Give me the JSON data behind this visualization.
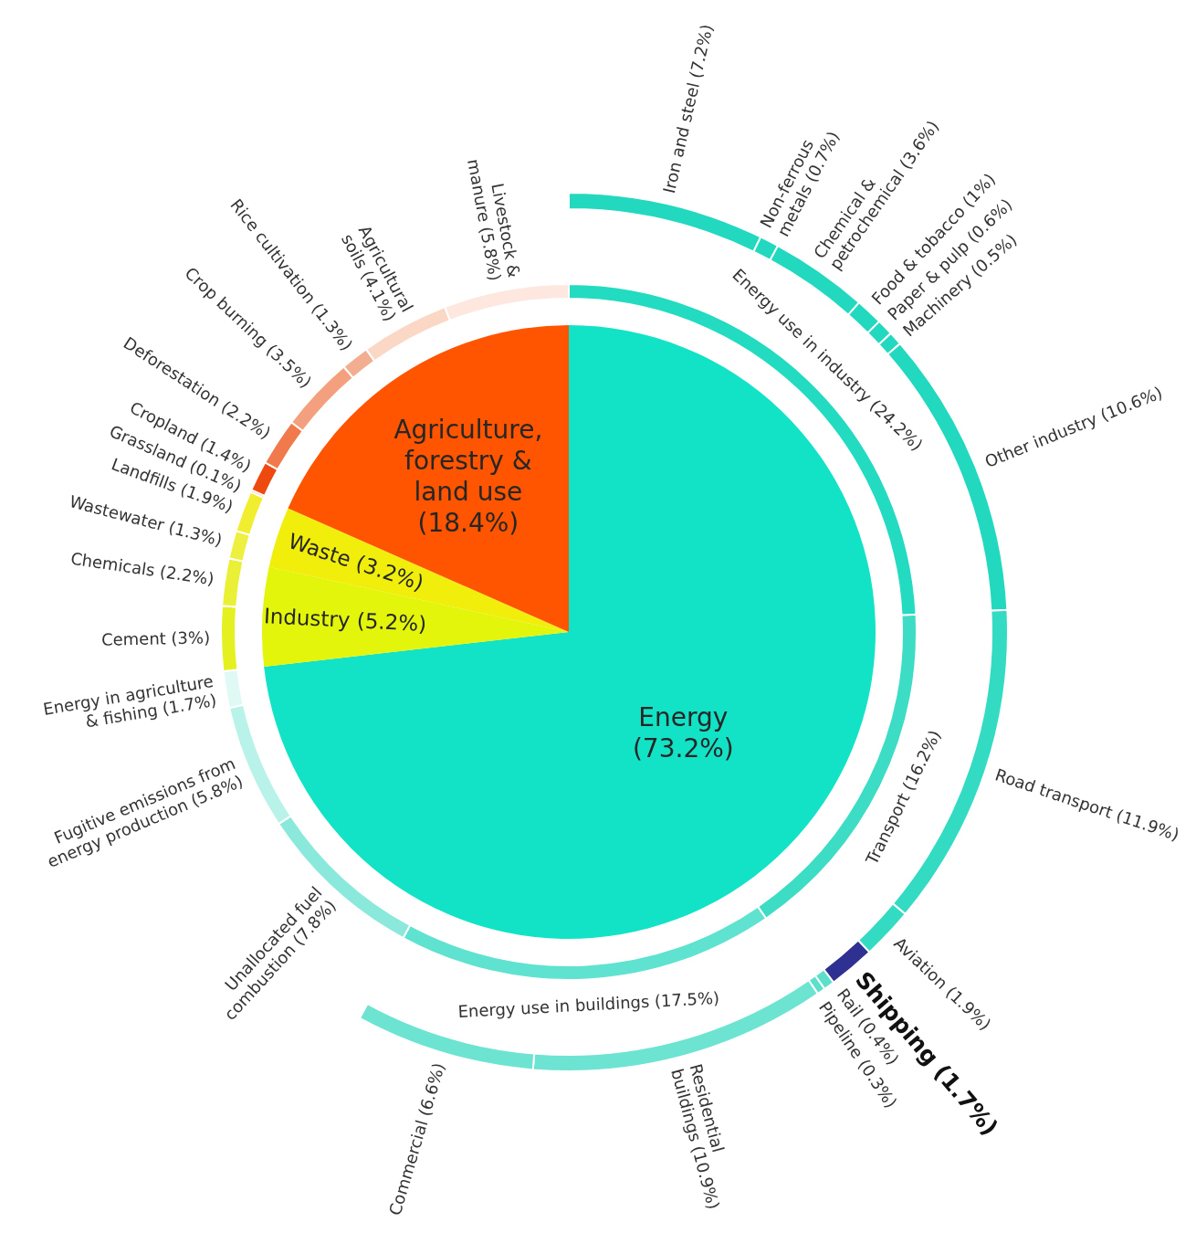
{
  "chart_data": [
    {
      "type": "pie",
      "categories": [
        "Energy",
        "Industry",
        "Waste",
        "Agriculture, forestry & land use"
      ],
      "values": [
        73.2,
        5.2,
        3.2,
        18.4
      ],
      "value_labels": [
        "(73.2%)",
        "(5.2%)",
        "(3.2%)",
        "(18.4%)"
      ],
      "colors": [
        "#12e2c6",
        "#e2f50a",
        "#f0ee0a",
        "#ff5500"
      ]
    },
    {
      "type": "donut",
      "categories": [
        "Energy use in industry",
        "Transport",
        "Energy use in buildings",
        "Unallocated fuel combustion",
        "Fugitive emissions from energy production",
        "Energy in agriculture & fishing",
        "Cement",
        "Chemicals",
        "Wastewater",
        "Landfills",
        "Grassland",
        "Cropland",
        "Deforestation",
        "Crop burning",
        "Rice cultivation",
        "Agricultural soils",
        "Livestock & manure"
      ],
      "values": [
        24.2,
        16.2,
        17.5,
        7.8,
        5.8,
        1.7,
        3,
        2.2,
        1.3,
        1.9,
        0.1,
        1.4,
        2.2,
        3.5,
        1.3,
        4.1,
        5.8
      ],
      "value_labels": [
        "(24.2%)",
        "(16.2%)",
        "(17.5%)",
        "(7.8%)",
        "(5.8%)",
        "(1.7%)",
        "(3%)",
        "(2.2%)",
        "(1.3%)",
        "(1.9%)",
        "(0.1%)",
        "(1.4%)",
        "(2.2%)",
        "(3.5%)",
        "(1.3%)",
        "(4.1%)",
        "(5.8%)"
      ],
      "colors": [
        "#22dbc0",
        "#3ddcc5",
        "#5fe2cf",
        "#8ae9da",
        "#b8f2e9",
        "#e0f9f5",
        "#e4f020",
        "#e9f035",
        "#eef040",
        "#f1ee30",
        "#ff4500",
        "#ee4a10",
        "#f07a4c",
        "#f4a07e",
        "#f3ad90",
        "#fbd7c6",
        "#fde7de"
      ]
    },
    {
      "type": "donut",
      "categories": [
        "Iron and steel",
        "Non-ferrous metals",
        "Chemical & petrochemical",
        "Food & tobacco",
        "Paper & pulp",
        "Machinery",
        "Other industry",
        "Road transport",
        "Aviation",
        "Shipping",
        "Rail",
        "Pipeline",
        "Residential buildings",
        "Commercial"
      ],
      "values": [
        7.2,
        0.7,
        3.6,
        1,
        0.6,
        0.5,
        10.6,
        11.9,
        1.9,
        1.7,
        0.4,
        0.3,
        10.9,
        6.6
      ],
      "value_labels": [
        "(7.2%)",
        "(0.7%)",
        "(3.6%)",
        "(1%)",
        "(0.6%)",
        "(0.5%)",
        "(10.6%)",
        "(11.9%)",
        "(1.9%)",
        "(1.7%)",
        "(0.4%)",
        "(0.3%)",
        "(10.9%)",
        "(6.6%)"
      ],
      "colors": [
        "#22d8be",
        "#22d8be",
        "#22d8be",
        "#22d8be",
        "#22d8be",
        "#22d8be",
        "#22d8be",
        "#34dbc3",
        "#34dbc3",
        "#2e3192",
        "#5ce0cc",
        "#5ce0cc",
        "#6de4d2",
        "#6de4d2"
      ]
    }
  ]
}
